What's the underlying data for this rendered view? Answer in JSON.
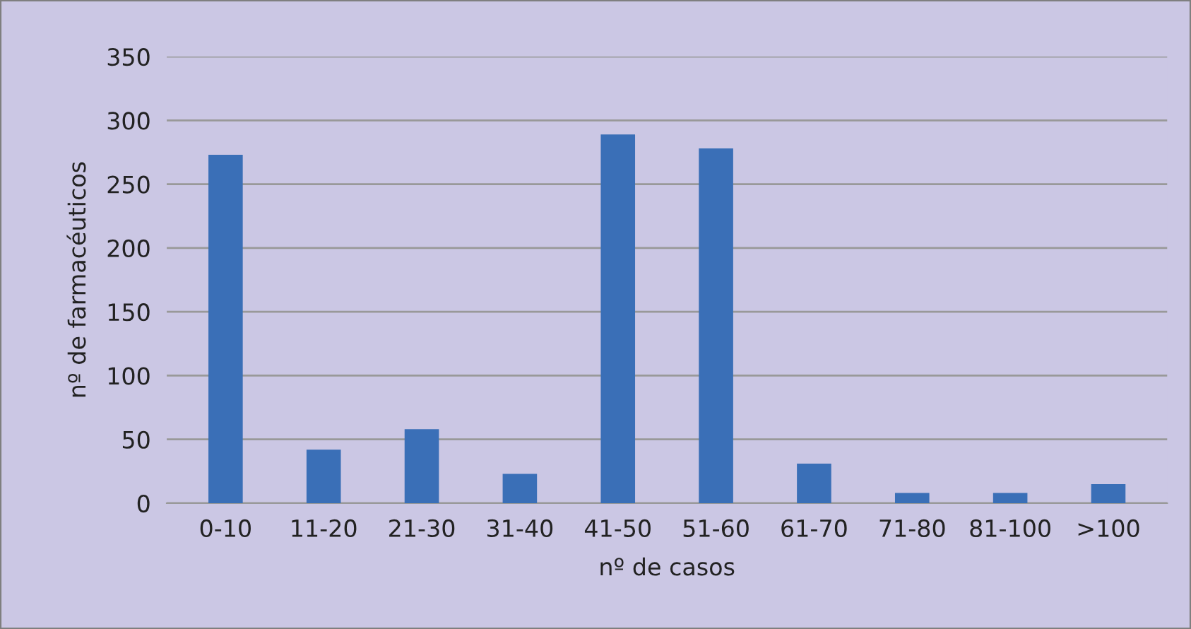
{
  "chart_data": {
    "type": "bar",
    "xlabel": "nº de casos",
    "ylabel": "nº de farmacéuticos",
    "categories": [
      "0-10",
      "11-20",
      "21-30",
      "31-40",
      "41-50",
      "51-60",
      "61-70",
      "71-80",
      "81-100",
      ">100"
    ],
    "values": [
      273,
      42,
      58,
      23,
      289,
      278,
      31,
      8,
      8,
      15
    ],
    "color": "#3a6fb7",
    "ylim": [
      0,
      350
    ],
    "yticks": [
      0,
      50,
      100,
      150,
      200,
      250,
      300,
      350
    ],
    "grid": "y",
    "legend": false
  }
}
